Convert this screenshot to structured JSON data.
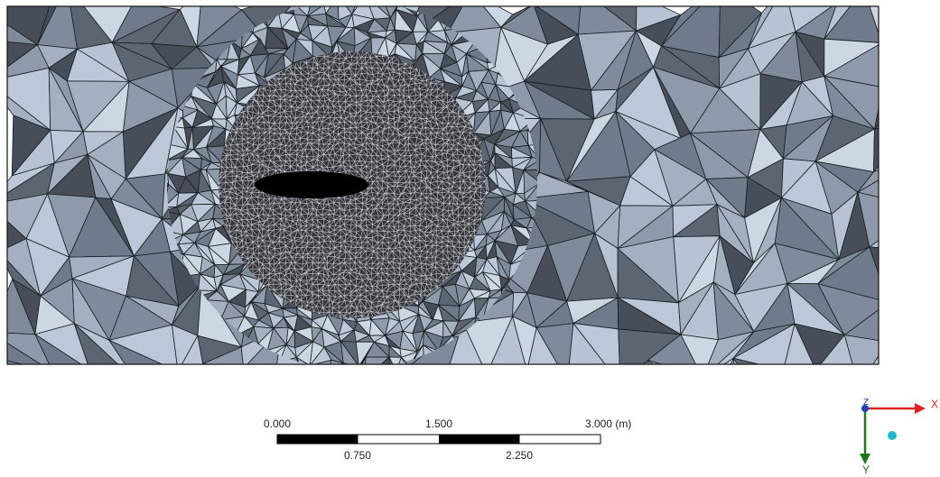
{
  "scale_bar": {
    "top_labels": [
      "0.000",
      "1.500",
      "3.000 (m)"
    ],
    "bottom_labels": [
      "0.750",
      "2.250"
    ]
  },
  "triad": {
    "x_label": "X",
    "y_label": "Y",
    "z_label": "Z"
  }
}
